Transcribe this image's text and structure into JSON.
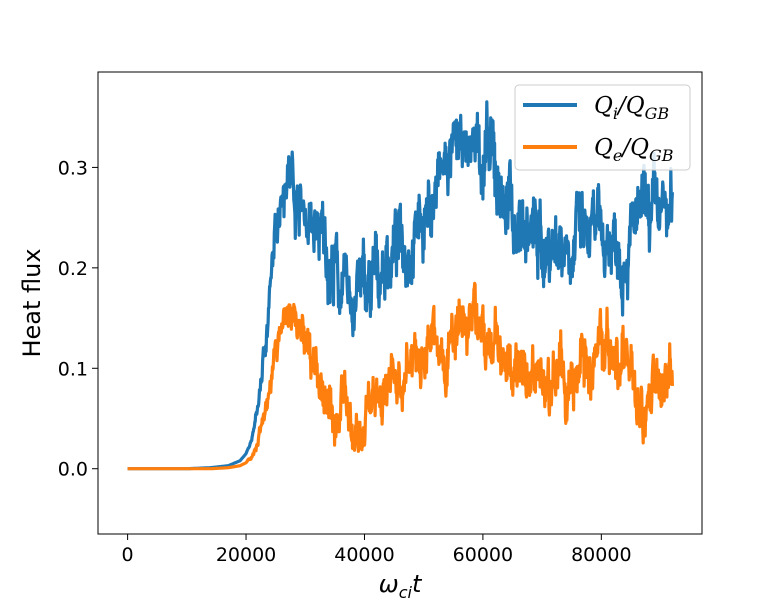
{
  "chart_data": {
    "type": "line",
    "title": "",
    "xlabel": "ω_ci t",
    "ylabel": "Heat flux",
    "xlim": [
      -5000,
      97000
    ],
    "ylim": [
      -0.065,
      0.395
    ],
    "xticks": [
      0,
      20000,
      40000,
      60000,
      80000
    ],
    "yticks": [
      0.0,
      0.1,
      0.2,
      0.3
    ],
    "xtick_labels": [
      "0",
      "20000",
      "40000",
      "60000",
      "80000"
    ],
    "ytick_labels": [
      "0.0",
      "0.1",
      "0.2",
      "0.3"
    ],
    "grid": false,
    "legend": "top-right",
    "series": [
      {
        "name": "Q_i/Q_GB",
        "legend_label": {
          "main": "Q",
          "sub": "i",
          "sep": "/Q",
          "sub2": "GB"
        },
        "color": "#1f77b4",
        "noise_amplitude": [
          0,
          0,
          0,
          0,
          0,
          0,
          0,
          0.005,
          0.01,
          0.025,
          0.04,
          0.04,
          0.05,
          0.06,
          0.06,
          0.06,
          0.07,
          0.07,
          0.07,
          0.07,
          0.07,
          0.07,
          0.07,
          0.07,
          0.07,
          0.07,
          0.06,
          0.06,
          0.05,
          0.07,
          0.08,
          0.08,
          0.08,
          0.08,
          0.08,
          0.08,
          0.07,
          0.07,
          0.07,
          0.07
        ],
        "x": [
          0,
          5000,
          10000,
          14000,
          17000,
          19000,
          20000,
          21000,
          22000,
          23000,
          24000,
          25000,
          26000,
          27000,
          29000,
          31000,
          33000,
          35000,
          37000,
          39000,
          41000,
          43000,
          45000,
          47000,
          49000,
          51000,
          53000,
          55000,
          57000,
          59000,
          61000,
          63000,
          65000,
          67000,
          70000,
          74000,
          78000,
          82000,
          86000,
          92000
        ],
        "values": [
          0,
          0,
          0,
          0.001,
          0.003,
          0.008,
          0.015,
          0.03,
          0.06,
          0.11,
          0.17,
          0.23,
          0.29,
          0.31,
          0.27,
          0.24,
          0.22,
          0.2,
          0.16,
          0.18,
          0.17,
          0.2,
          0.22,
          0.23,
          0.25,
          0.26,
          0.29,
          0.31,
          0.31,
          0.33,
          0.3,
          0.28,
          0.25,
          0.24,
          0.22,
          0.24,
          0.22,
          0.23,
          0.24,
          0.25
        ]
      },
      {
        "name": "Q_e/Q_GB",
        "legend_label": {
          "main": "Q",
          "sub": "e",
          "sep": "/Q",
          "sub2": "GB"
        },
        "color": "#ff7f0e",
        "noise_amplitude": [
          0,
          0,
          0,
          0,
          0,
          0,
          0,
          0.005,
          0.01,
          0.02,
          0.025,
          0.03,
          0.035,
          0.04,
          0.04,
          0.045,
          0.05,
          0.05,
          0.05,
          0.05,
          0.05,
          0.05,
          0.05,
          0.05,
          0.05,
          0.05,
          0.05,
          0.06,
          0.06,
          0.06,
          0.06,
          0.06,
          0.06,
          0.06,
          0.06,
          0.06,
          0.06,
          0.06,
          0.06,
          0.06
        ],
        "x": [
          0,
          5000,
          10000,
          14000,
          17000,
          19000,
          20000,
          21000,
          22000,
          23000,
          24000,
          25000,
          26000,
          27000,
          29000,
          31000,
          33000,
          35000,
          37000,
          39000,
          41000,
          43000,
          45000,
          47000,
          49000,
          51000,
          53000,
          55000,
          57000,
          59000,
          61000,
          63000,
          65000,
          67000,
          70000,
          74000,
          78000,
          82000,
          86000,
          92000
        ],
        "values": [
          0,
          0,
          0,
          0,
          0.001,
          0.003,
          0.006,
          0.012,
          0.025,
          0.05,
          0.08,
          0.11,
          0.13,
          0.14,
          0.15,
          0.1,
          0.08,
          0.06,
          0.06,
          0.03,
          0.07,
          0.09,
          0.09,
          0.1,
          0.11,
          0.12,
          0.13,
          0.13,
          0.14,
          0.13,
          0.12,
          0.11,
          0.1,
          0.09,
          0.08,
          0.09,
          0.1,
          0.11,
          0.09,
          0.09
        ]
      }
    ]
  }
}
